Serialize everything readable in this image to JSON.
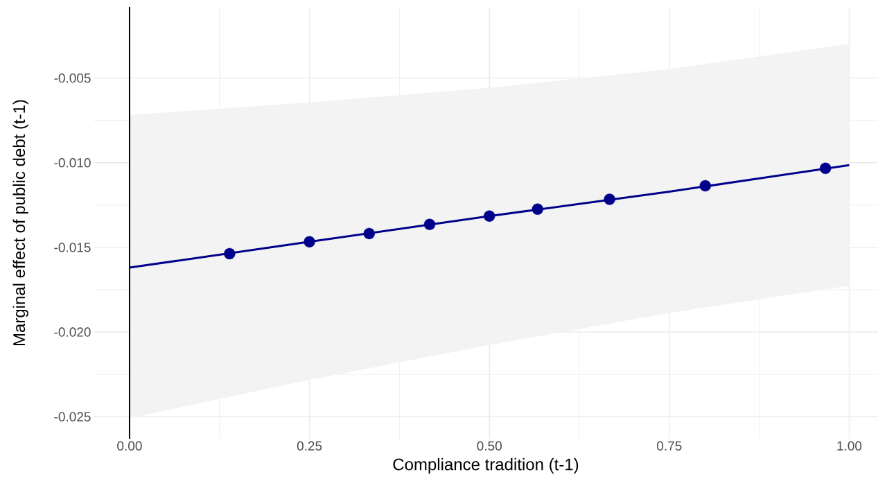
{
  "chart_data": {
    "type": "line",
    "xlabel": "Compliance tradition (t-1)",
    "ylabel": "Marginal effect of public debt (t-1)",
    "xlim": [
      -0.05,
      1.04
    ],
    "ylim": [
      -0.0263,
      -0.0008
    ],
    "xticks": [
      {
        "value": 0,
        "label": "0.00"
      },
      0.25,
      {
        "value": 0.5,
        "label": "0.50"
      },
      0.75,
      {
        "value": 1,
        "label": "1.00"
      }
    ],
    "yticks": [
      -0.025,
      {
        "value": -0.02,
        "label": "-0.020"
      },
      -0.015,
      {
        "value": -0.01,
        "label": "-0.010"
      },
      -0.005
    ],
    "grid": true,
    "ref_lines": [
      {
        "axis": "x",
        "value": 0,
        "color": "#000000"
      }
    ],
    "series": [
      {
        "color": "#00008b",
        "x": [
          0,
          0.25,
          0.5,
          0.75,
          1
        ],
        "values": [
          -0.01619,
          -0.01467,
          -0.01315,
          -0.01171,
          -0.01014
        ],
        "lower": [
          -0.02508,
          -0.02282,
          -0.02076,
          -0.01887,
          -0.01726
        ],
        "upper": [
          -0.00718,
          -0.00644,
          -0.00558,
          -0.00447,
          -0.00298
        ]
      },
      {
        "type": "scatter",
        "color": "#00008b",
        "x": [
          0.139,
          0.25,
          0.333,
          0.417,
          0.5,
          0.567,
          0.667,
          0.8,
          0.967
        ],
        "values": [
          -0.01537,
          -0.01467,
          -0.01418,
          -0.01364,
          -0.01315,
          -0.01274,
          -0.01216,
          -0.01136,
          -0.01033
        ]
      }
    ]
  }
}
